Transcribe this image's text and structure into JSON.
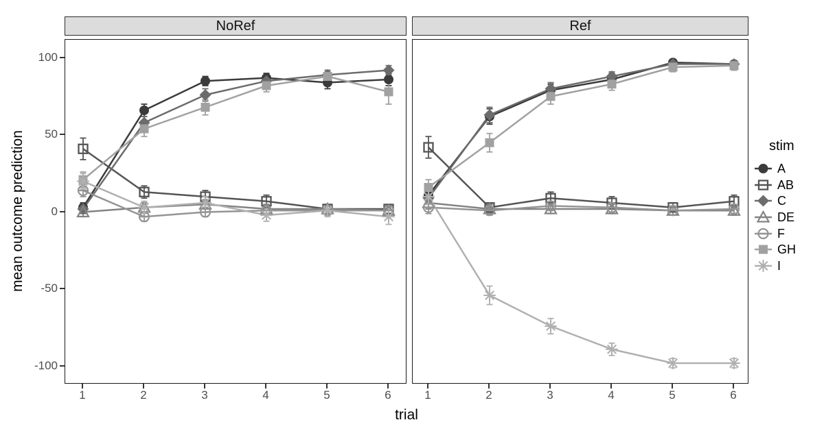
{
  "chart_data": {
    "type": "line",
    "facet_titles": [
      "NoRef",
      "Ref"
    ],
    "xlabel": "trial",
    "ylabel": "mean outcome prediction",
    "x": [
      1,
      2,
      3,
      4,
      5,
      6
    ],
    "xticklabels": [
      "1",
      "2",
      "3",
      "4",
      "5",
      "6"
    ],
    "yticks": [
      100,
      50,
      0,
      -50,
      -100
    ],
    "ylim": [
      -112,
      112
    ],
    "grid": false,
    "legend": {
      "title": "stim",
      "position": "right"
    },
    "series_style": [
      {
        "name": "A",
        "marker": "circle-filled",
        "color": "#3B3B3B"
      },
      {
        "name": "AB",
        "marker": "square-open",
        "color": "#545454"
      },
      {
        "name": "C",
        "marker": "diamond-filled",
        "color": "#6C6C6C"
      },
      {
        "name": "DE",
        "marker": "triangle-open",
        "color": "#838383"
      },
      {
        "name": "F",
        "marker": "circle-minus",
        "color": "#949494"
      },
      {
        "name": "GH",
        "marker": "square-filled",
        "color": "#A1A1A1"
      },
      {
        "name": "I",
        "marker": "asterisk",
        "color": "#B0B0B0"
      }
    ],
    "panels": [
      {
        "title": "NoRef",
        "series": [
          {
            "name": "A",
            "values": [
              3,
              66,
              85,
              87,
              84,
              86
            ],
            "err": [
              3,
              4,
              3,
              3,
              4,
              4
            ]
          },
          {
            "name": "AB",
            "values": [
              41,
              13,
              10,
              7,
              2,
              2
            ],
            "err": [
              7,
              4,
              4,
              4,
              3,
              3
            ]
          },
          {
            "name": "C",
            "values": [
              2,
              58,
              76,
              85,
              89,
              92
            ],
            "err": [
              3,
              4,
              4,
              3,
              3,
              3
            ]
          },
          {
            "name": "DE",
            "values": [
              0,
              3,
              5,
              2,
              2,
              1
            ],
            "err": [
              3,
              3,
              3,
              3,
              3,
              3
            ]
          },
          {
            "name": "F",
            "values": [
              14,
              -3,
              0,
              1,
              1,
              1
            ],
            "err": [
              4,
              3,
              3,
              3,
              3,
              3
            ]
          },
          {
            "name": "GH",
            "values": [
              21,
              54,
              68,
              82,
              88,
              78
            ],
            "err": [
              5,
              5,
              5,
              4,
              3,
              8
            ]
          },
          {
            "name": "I",
            "values": [
              20,
              3,
              6,
              -2,
              1,
              -3
            ],
            "err": [
              5,
              4,
              4,
              4,
              4,
              5
            ]
          }
        ]
      },
      {
        "title": "Ref",
        "series": [
          {
            "name": "A",
            "values": [
              11,
              62,
              79,
              86,
              97,
              96
            ],
            "err": [
              4,
              5,
              4,
              4,
              2,
              2
            ]
          },
          {
            "name": "AB",
            "values": [
              42,
              3,
              9,
              6,
              3,
              7
            ],
            "err": [
              7,
              3,
              4,
              4,
              3,
              4
            ]
          },
          {
            "name": "C",
            "values": [
              9,
              63,
              80,
              88,
              96,
              96
            ],
            "err": [
              4,
              5,
              4,
              3,
              2,
              2
            ]
          },
          {
            "name": "DE",
            "values": [
              6,
              2,
              2,
              2,
              1,
              1
            ],
            "err": [
              4,
              3,
              3,
              3,
              3,
              3
            ]
          },
          {
            "name": "F",
            "values": [
              3,
              1,
              4,
              3,
              1,
              2
            ],
            "err": [
              4,
              3,
              3,
              3,
              3,
              3
            ]
          },
          {
            "name": "GH",
            "values": [
              16,
              45,
              75,
              83,
              94,
              95
            ],
            "err": [
              5,
              6,
              5,
              4,
              3,
              3
            ]
          },
          {
            "name": "I",
            "values": [
              10,
              -54,
              -74,
              -89,
              -98,
              -98
            ],
            "err": [
              5,
              6,
              5,
              4,
              3,
              3
            ]
          }
        ]
      }
    ],
    "colors": {
      "strip_bg": "#DCDCDC",
      "panel_border": "#1A1A1A",
      "axis_text": "#4D4D4D",
      "title_text": "#000000",
      "background": "#FFFFFF"
    }
  }
}
